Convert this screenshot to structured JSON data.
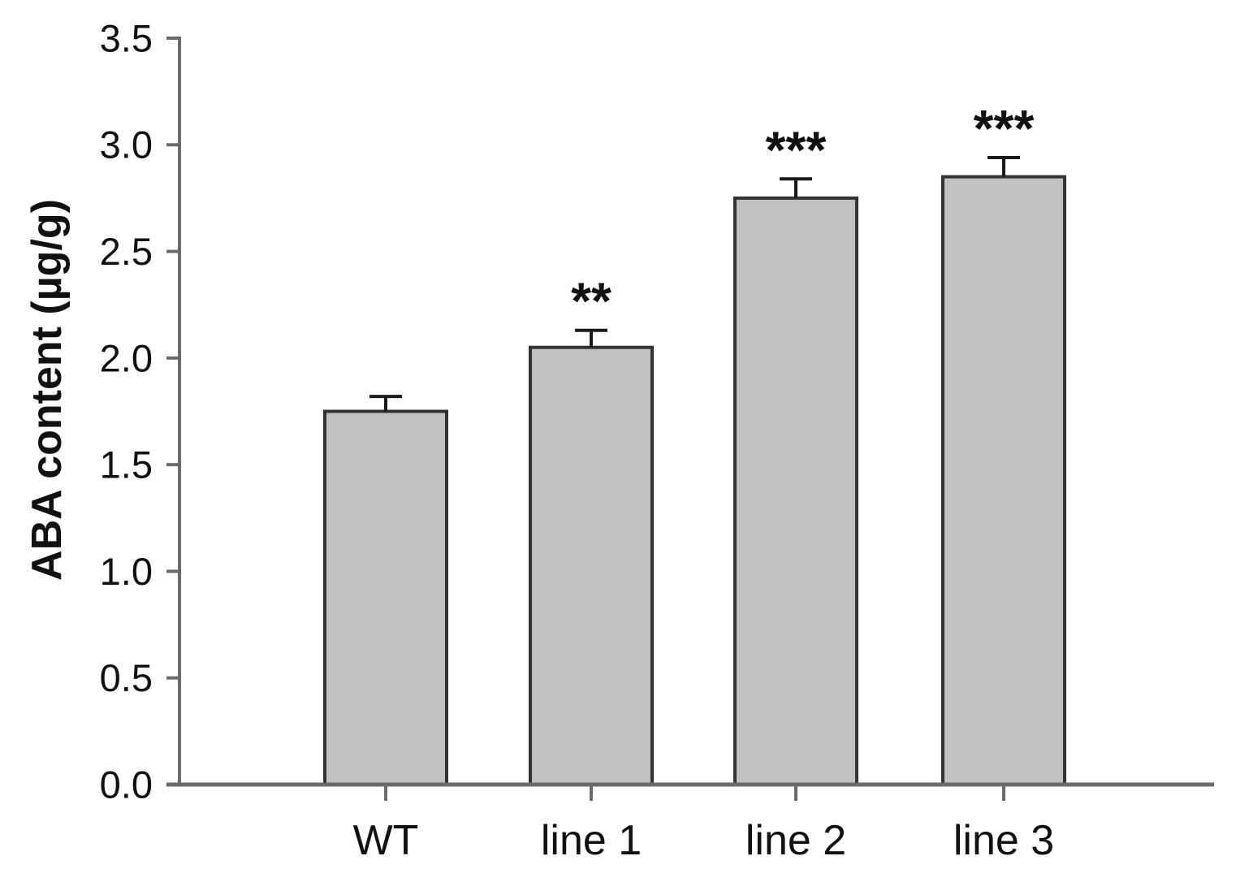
{
  "figure": {
    "background": "#ffffff"
  },
  "chart_data": {
    "type": "bar",
    "title": "",
    "xlabel": "",
    "ylabel": "ABA content (µg/g)",
    "categories": [
      "WT",
      "line 1",
      "line 2",
      "line 3"
    ],
    "values": [
      1.75,
      2.05,
      2.75,
      2.85
    ],
    "errors": [
      0.07,
      0.08,
      0.09,
      0.09
    ],
    "significance": [
      "",
      "**",
      "***",
      "***"
    ],
    "ylim": [
      0,
      3.5
    ],
    "ytick_step": 0.5,
    "ytick_labels": [
      "0.0",
      "0.5",
      "1.0",
      "1.5",
      "2.0",
      "2.5",
      "3.0",
      "3.5"
    ],
    "grid": false,
    "legend": null,
    "error_bar_direction": "up",
    "bar_fill": "#c1c1c1",
    "bar_stroke": "#333333",
    "axis_color": "#6b6b6b",
    "error_color": "#1a1a1a",
    "text_color": "#111111"
  }
}
